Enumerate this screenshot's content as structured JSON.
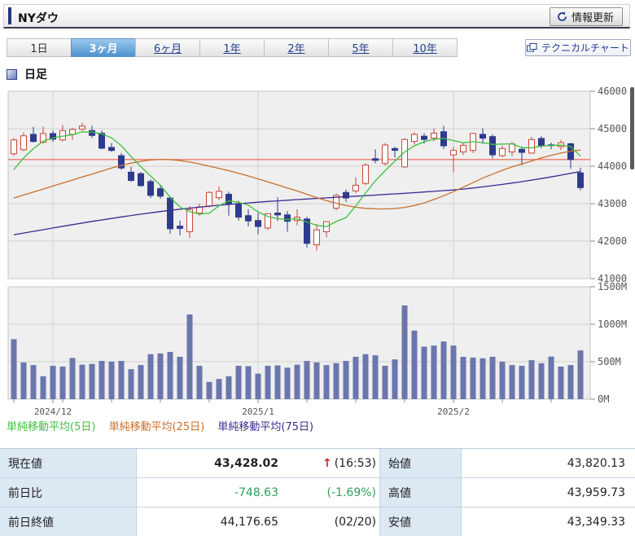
{
  "header": {
    "title": "NYダウ",
    "refresh_label": "情報更新"
  },
  "tabs": [
    {
      "label": "1日",
      "selected": false
    },
    {
      "label": "3ヶ月",
      "selected": true
    },
    {
      "label": "6ヶ月",
      "selected": false
    },
    {
      "label": "1年",
      "selected": false
    },
    {
      "label": "2年",
      "selected": false
    },
    {
      "label": "5年",
      "selected": false
    },
    {
      "label": "10年",
      "selected": false
    }
  ],
  "technical_chart_label": "テクニカルチャート",
  "chart_type_label": "日足",
  "legend": [
    {
      "label": "単純移動平均(5日)",
      "color": "#3fbf3f"
    },
    {
      "label": "単純移動平均(25日)",
      "color": "#c86f2a"
    },
    {
      "label": "単純移動平均(75日)",
      "color": "#3b2b8f"
    }
  ],
  "quote_table": {
    "rows": [
      {
        "label": "現在値",
        "value": "43,428.02",
        "arrow": "↑",
        "sub": "(16:53)",
        "label2": "始値",
        "value2": "43,820.13"
      },
      {
        "label": "前日比",
        "value": "-748.63",
        "sub": "(-1.69%)",
        "label2": "高値",
        "value2": "43,959.73"
      },
      {
        "label": "前日終値",
        "value": "44,176.65",
        "sub": "(02/20)",
        "label2": "安値",
        "value2": "43,349.33"
      }
    ]
  },
  "chart_data": {
    "type": "candlestick",
    "title": "NYダウ 日足 3ヶ月",
    "price_axis": {
      "min": 41000,
      "max": 46000,
      "tick_values": [
        46000,
        45000,
        44000,
        43000,
        42000,
        41000
      ]
    },
    "volume_axis": {
      "min": 0,
      "max": 1500,
      "unit": "M",
      "tick_values": [
        1500,
        1000,
        500,
        0
      ]
    },
    "prev_close_line": 44176.65,
    "x_month_ticks": [
      {
        "label": "2024/12",
        "index": 4
      },
      {
        "label": "2025/1",
        "index": 25
      },
      {
        "label": "2025/2",
        "index": 45
      }
    ],
    "ma5_seed_closes": [
      43269,
      43408,
      43870,
      44297
    ],
    "series": {
      "candles_ohlc": [
        [
          44330,
          44750,
          44280,
          44700
        ],
        [
          44440,
          44900,
          44400,
          44810
        ],
        [
          44850,
          45050,
          44630,
          44660
        ],
        [
          44640,
          45060,
          44600,
          44870
        ],
        [
          44870,
          44950,
          44650,
          44720
        ],
        [
          44700,
          45100,
          44660,
          44950
        ],
        [
          44850,
          45020,
          44700,
          44980
        ],
        [
          44990,
          45150,
          44940,
          45070
        ],
        [
          44950,
          45080,
          44750,
          44820
        ],
        [
          44880,
          44950,
          44450,
          44480
        ],
        [
          44500,
          44620,
          44380,
          44420
        ],
        [
          44280,
          44350,
          43900,
          43950
        ],
        [
          43840,
          43980,
          43580,
          43620
        ],
        [
          43800,
          43850,
          43450,
          43480
        ],
        [
          43590,
          43650,
          43150,
          43220
        ],
        [
          43400,
          43480,
          43130,
          43200
        ],
        [
          43150,
          43200,
          42200,
          42330
        ],
        [
          42400,
          42550,
          42150,
          42340
        ],
        [
          42250,
          42940,
          42080,
          42840
        ],
        [
          42750,
          43000,
          42680,
          42910
        ],
        [
          42940,
          43330,
          42900,
          43300
        ],
        [
          43160,
          43460,
          43100,
          43330
        ],
        [
          43250,
          43320,
          42680,
          42990
        ],
        [
          42980,
          43080,
          42550,
          42640
        ],
        [
          42680,
          42850,
          42400,
          42540
        ],
        [
          42550,
          42750,
          42180,
          42390
        ],
        [
          42350,
          42720,
          42300,
          42730
        ],
        [
          42750,
          43170,
          42540,
          42700
        ],
        [
          42700,
          42800,
          42250,
          42530
        ],
        [
          42550,
          42850,
          42420,
          42640
        ],
        [
          42590,
          42650,
          41830,
          41940
        ],
        [
          41900,
          42460,
          41750,
          42300
        ],
        [
          42250,
          42520,
          42100,
          42520
        ],
        [
          42880,
          43270,
          42820,
          43220
        ],
        [
          43300,
          43380,
          43050,
          43150
        ],
        [
          43340,
          43700,
          43280,
          43490
        ],
        [
          43540,
          44080,
          43500,
          44030
        ],
        [
          44200,
          44450,
          44080,
          44156
        ],
        [
          44070,
          44620,
          44020,
          44565
        ],
        [
          44470,
          44520,
          44230,
          44424
        ],
        [
          43980,
          44750,
          43950,
          44713
        ],
        [
          44660,
          44900,
          44580,
          44850
        ],
        [
          44800,
          44880,
          44600,
          44713
        ],
        [
          44750,
          45010,
          44670,
          44882
        ],
        [
          44920,
          45080,
          44460,
          44544
        ],
        [
          44300,
          44520,
          43840,
          44421
        ],
        [
          44380,
          44620,
          44300,
          44556
        ],
        [
          44420,
          44890,
          44350,
          44873
        ],
        [
          44850,
          45010,
          44600,
          44747
        ],
        [
          44790,
          44850,
          44210,
          44303
        ],
        [
          44280,
          44550,
          44240,
          44470
        ],
        [
          44380,
          44650,
          44270,
          44593
        ],
        [
          44450,
          44520,
          44030,
          44368
        ],
        [
          44350,
          44780,
          44330,
          44711
        ],
        [
          44740,
          44800,
          44480,
          44546
        ],
        [
          44570,
          44630,
          44450,
          44556
        ],
        [
          44520,
          44700,
          44430,
          44627
        ],
        [
          44600,
          44620,
          43930,
          44176.65
        ],
        [
          43820.13,
          43959.73,
          43349.33,
          43428.02
        ]
      ],
      "volumes_m": [
        800,
        490,
        455,
        305,
        445,
        435,
        550,
        460,
        470,
        510,
        500,
        510,
        400,
        455,
        600,
        610,
        630,
        565,
        1130,
        445,
        230,
        270,
        305,
        445,
        440,
        340,
        445,
        450,
        420,
        460,
        510,
        490,
        455,
        480,
        510,
        565,
        600,
        585,
        445,
        530,
        1250,
        915,
        700,
        715,
        770,
        715,
        565,
        555,
        545,
        565,
        500,
        455,
        445,
        520,
        480,
        568,
        435,
        455,
        650
      ],
      "ma25": [
        43150,
        43230,
        43310,
        43390,
        43470,
        43550,
        43630,
        43710,
        43790,
        43870,
        43950,
        44020,
        44080,
        44130,
        44165,
        44180,
        44175,
        44150,
        44110,
        44060,
        44000,
        43940,
        43880,
        43810,
        43740,
        43660,
        43580,
        43500,
        43420,
        43340,
        43250,
        43160,
        43080,
        43010,
        42950,
        42905,
        42875,
        42860,
        42858,
        42870,
        42900,
        42950,
        43020,
        43110,
        43210,
        43320,
        43440,
        43560,
        43680,
        43790,
        43890,
        43980,
        44060,
        44140,
        44220,
        44290,
        44350,
        44400,
        44430
      ],
      "ma75": [
        42170,
        42215,
        42260,
        42305,
        42350,
        42395,
        42440,
        42483,
        42525,
        42565,
        42605,
        42645,
        42683,
        42720,
        42755,
        42790,
        42822,
        42852,
        42880,
        42907,
        42932,
        42956,
        42978,
        43000,
        43020,
        43040,
        43058,
        43075,
        43092,
        43108,
        43124,
        43139,
        43154,
        43169,
        43184,
        43199,
        43214,
        43229,
        43245,
        43261,
        43277,
        43294,
        43311,
        43329,
        43347,
        43366,
        43390,
        43418,
        43448,
        43480,
        43514,
        43550,
        43588,
        43628,
        43670,
        43714,
        43760,
        43808,
        43858
      ]
    },
    "colors": {
      "up": "#c84638",
      "down": "#2e3a8c",
      "ma5": "#3fbf3f",
      "ma25": "#c86f2a",
      "ma75": "#3b2b8f",
      "prev_close": "#ee6a5a",
      "volume": "#6b76ad",
      "pane_bg": "#efefef",
      "grid": "#d2d2d2",
      "pane_border": "#c6c6c6",
      "axis_text": "#555555"
    }
  }
}
